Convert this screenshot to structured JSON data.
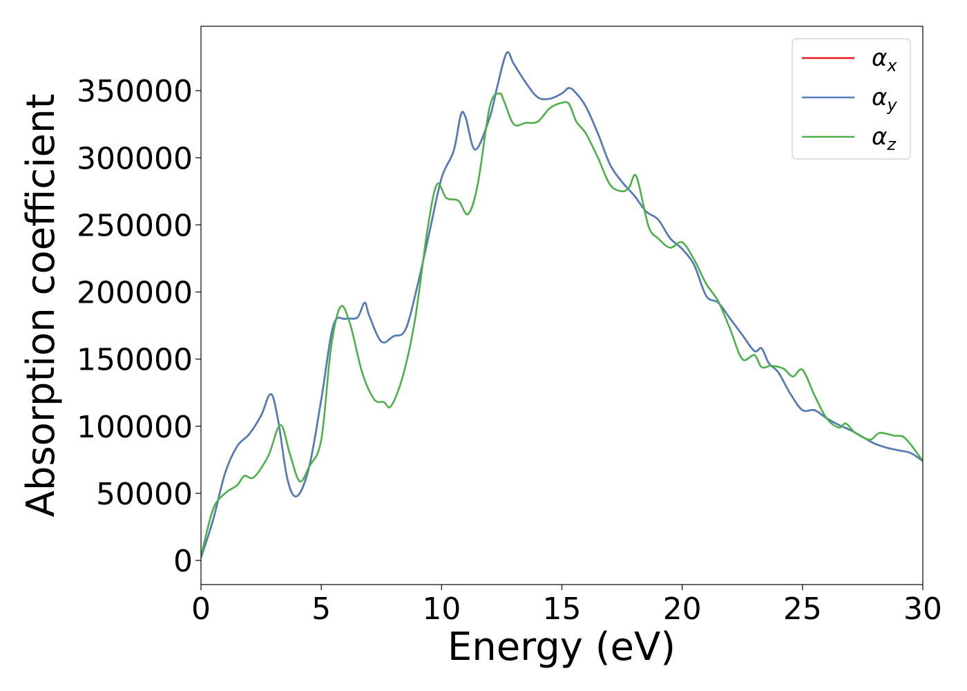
{
  "chart_data": {
    "type": "line",
    "xlabel": "Energy (eV)",
    "ylabel": "Absorption coefficient",
    "xlim": [
      0,
      30
    ],
    "ylim": [
      -18000,
      398000
    ],
    "xticks": [
      0,
      5,
      10,
      15,
      20,
      25,
      30
    ],
    "yticks": [
      0,
      50000,
      100000,
      150000,
      200000,
      250000,
      300000,
      350000
    ],
    "grid": false,
    "legend_position": "top-right",
    "series": [
      {
        "name": "α",
        "subscript": "x",
        "color": "#e41a1c",
        "x": [
          0,
          0.5,
          1,
          1.5,
          2,
          2.5,
          2.9,
          3.2,
          3.6,
          4,
          4.5,
          5,
          5.5,
          6,
          6.5,
          6.8,
          7,
          7.5,
          8,
          8.5,
          9,
          9.5,
          10,
          10.5,
          10.8,
          11,
          11.4,
          12,
          12.3,
          12.7,
          13,
          13.5,
          14,
          14.5,
          15,
          15.3,
          15.6,
          16,
          16.5,
          17,
          17.5,
          18,
          18.5,
          19,
          19.5,
          20,
          20.5,
          21,
          21.5,
          22,
          22.5,
          23,
          23.3,
          23.6,
          24,
          24.5,
          25,
          25.5,
          26,
          26.5,
          27,
          27.5,
          28,
          28.5,
          29,
          29.5,
          30
        ],
        "values": [
          2000,
          30000,
          65000,
          85000,
          94000,
          108000,
          124000,
          105000,
          60000,
          48000,
          70000,
          120000,
          175000,
          180000,
          181000,
          192000,
          182000,
          163000,
          167000,
          172000,
          205000,
          245000,
          285000,
          305000,
          332000,
          330000,
          306000,
          330000,
          352000,
          378000,
          370000,
          356000,
          345000,
          344000,
          348000,
          352000,
          348000,
          338000,
          318000,
          295000,
          282000,
          272000,
          260000,
          254000,
          240000,
          232000,
          220000,
          197000,
          192000,
          180000,
          168000,
          156000,
          158000,
          147000,
          140000,
          124000,
          112000,
          112000,
          106000,
          101000,
          97000,
          92000,
          87000,
          84000,
          82000,
          80000,
          74000
        ]
      },
      {
        "name": "α",
        "subscript": "y",
        "color": "#4e7fba",
        "x": [
          0,
          0.5,
          1,
          1.5,
          2,
          2.5,
          2.9,
          3.2,
          3.6,
          4,
          4.5,
          5,
          5.5,
          6,
          6.5,
          6.8,
          7,
          7.5,
          8,
          8.5,
          9,
          9.5,
          10,
          10.5,
          10.8,
          11,
          11.4,
          12,
          12.3,
          12.7,
          13,
          13.5,
          14,
          14.5,
          15,
          15.3,
          15.6,
          16,
          16.5,
          17,
          17.5,
          18,
          18.5,
          19,
          19.5,
          20,
          20.5,
          21,
          21.5,
          22,
          22.5,
          23,
          23.3,
          23.6,
          24,
          24.5,
          25,
          25.5,
          26,
          26.5,
          27,
          27.5,
          28,
          28.5,
          29,
          29.5,
          30
        ],
        "values": [
          2000,
          30000,
          65000,
          85000,
          94000,
          108000,
          124000,
          105000,
          60000,
          48000,
          70000,
          120000,
          175000,
          180000,
          181000,
          192000,
          182000,
          163000,
          167000,
          172000,
          205000,
          245000,
          285000,
          305000,
          332000,
          330000,
          306000,
          330000,
          352000,
          378000,
          370000,
          356000,
          345000,
          344000,
          348000,
          352000,
          348000,
          338000,
          318000,
          295000,
          282000,
          272000,
          260000,
          254000,
          240000,
          232000,
          220000,
          197000,
          192000,
          180000,
          168000,
          156000,
          158000,
          147000,
          140000,
          124000,
          112000,
          112000,
          106000,
          101000,
          97000,
          92000,
          87000,
          84000,
          82000,
          80000,
          74000
        ]
      },
      {
        "name": "α",
        "subscript": "z",
        "color": "#4daf4a",
        "x": [
          0,
          0.5,
          1,
          1.5,
          1.8,
          2.2,
          2.8,
          3.3,
          3.7,
          4.1,
          4.5,
          5,
          5.4,
          5.8,
          6.2,
          6.7,
          7.2,
          7.6,
          7.9,
          8.4,
          8.9,
          9.4,
          9.8,
          10.2,
          10.7,
          11.1,
          11.5,
          12,
          12.4,
          12.6,
          13,
          13.5,
          14,
          14.5,
          15,
          15.3,
          15.6,
          16,
          16.5,
          17,
          17.5,
          17.8,
          18.1,
          18.6,
          19,
          19.5,
          20,
          20.5,
          21,
          21.5,
          22,
          22.5,
          23,
          23.3,
          23.7,
          24.2,
          24.6,
          25,
          25.5,
          26,
          26.5,
          26.8,
          27.2,
          27.8,
          28.2,
          28.8,
          29.2,
          29.6,
          30
        ],
        "values": [
          3000,
          38000,
          50000,
          56000,
          63000,
          62000,
          78000,
          101000,
          79000,
          59000,
          70000,
          90000,
          158000,
          189000,
          176000,
          140000,
          120000,
          118000,
          115000,
          138000,
          180000,
          245000,
          280000,
          270000,
          268000,
          258000,
          280000,
          338000,
          348000,
          342000,
          325000,
          326000,
          327000,
          337000,
          341000,
          340000,
          327000,
          318000,
          300000,
          280000,
          275000,
          278000,
          286000,
          249000,
          240000,
          233000,
          237000,
          224000,
          206000,
          193000,
          172000,
          150000,
          153000,
          144000,
          145000,
          143000,
          137000,
          142000,
          123000,
          106000,
          99000,
          102000,
          95000,
          90000,
          95000,
          93000,
          92000,
          84000,
          74000
        ]
      }
    ]
  }
}
